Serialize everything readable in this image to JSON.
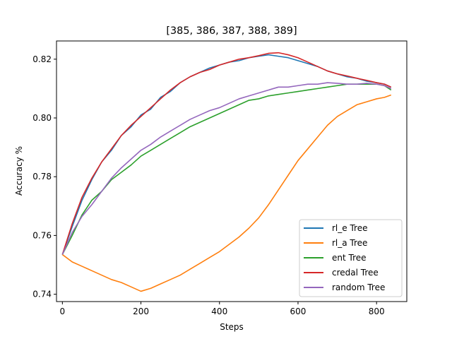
{
  "chart_data": {
    "type": "line",
    "title": "[385, 386, 387, 388, 389]",
    "xlabel": "Steps",
    "ylabel": "Accuracy %",
    "xlim": [
      -15,
      877
    ],
    "ylim": [
      0.7375,
      0.8262
    ],
    "xticks": [
      0,
      200,
      400,
      600,
      800
    ],
    "yticks": [
      0.74,
      0.76,
      0.78,
      0.8,
      0.82
    ],
    "ytick_labels": [
      "0.74",
      "0.76",
      "0.78",
      "0.80",
      "0.82"
    ],
    "grid": false,
    "legend_position": "lower-right",
    "series": [
      {
        "name": "rl_e Tree",
        "color": "#1f77b4",
        "x": [
          0,
          25,
          50,
          75,
          100,
          125,
          150,
          175,
          200,
          225,
          250,
          275,
          300,
          325,
          350,
          375,
          400,
          425,
          450,
          475,
          500,
          525,
          550,
          575,
          600,
          625,
          650,
          675,
          700,
          725,
          750,
          775,
          800,
          820,
          837
        ],
        "y": [
          0.7535,
          0.763,
          0.772,
          0.779,
          0.785,
          0.789,
          0.794,
          0.797,
          0.801,
          0.803,
          0.807,
          0.809,
          0.812,
          0.814,
          0.8155,
          0.817,
          0.818,
          0.819,
          0.8195,
          0.8205,
          0.821,
          0.8215,
          0.821,
          0.8205,
          0.8195,
          0.8185,
          0.8175,
          0.816,
          0.815,
          0.814,
          0.8135,
          0.8125,
          0.812,
          0.8115,
          0.8105
        ]
      },
      {
        "name": "rl_a Tree",
        "color": "#ff7f0e",
        "x": [
          0,
          25,
          50,
          75,
          100,
          125,
          150,
          175,
          200,
          225,
          250,
          275,
          300,
          325,
          350,
          375,
          400,
          425,
          450,
          475,
          500,
          525,
          550,
          575,
          600,
          625,
          650,
          675,
          700,
          725,
          750,
          775,
          800,
          820,
          837
        ],
        "y": [
          0.7535,
          0.751,
          0.7495,
          0.748,
          0.7465,
          0.745,
          0.744,
          0.7425,
          0.741,
          0.742,
          0.7435,
          0.745,
          0.7465,
          0.7485,
          0.7505,
          0.7525,
          0.7545,
          0.757,
          0.7595,
          0.7625,
          0.766,
          0.7705,
          0.7755,
          0.7805,
          0.7855,
          0.7895,
          0.7935,
          0.7975,
          0.8005,
          0.8025,
          0.8045,
          0.8055,
          0.8065,
          0.807,
          0.8078
        ]
      },
      {
        "name": "ent Tree",
        "color": "#2ca02c",
        "x": [
          0,
          25,
          50,
          75,
          100,
          125,
          150,
          175,
          200,
          225,
          250,
          275,
          300,
          325,
          350,
          375,
          400,
          425,
          450,
          475,
          500,
          525,
          550,
          575,
          600,
          625,
          650,
          675,
          700,
          725,
          750,
          775,
          800,
          820,
          837
        ],
        "y": [
          0.7535,
          0.76,
          0.767,
          0.772,
          0.775,
          0.779,
          0.7815,
          0.784,
          0.787,
          0.789,
          0.791,
          0.793,
          0.795,
          0.797,
          0.7985,
          0.8,
          0.8015,
          0.803,
          0.8045,
          0.806,
          0.8065,
          0.8075,
          0.808,
          0.8085,
          0.809,
          0.8095,
          0.81,
          0.8105,
          0.811,
          0.8115,
          0.8115,
          0.8115,
          0.8115,
          0.811,
          0.8095
        ]
      },
      {
        "name": "credal Tree",
        "color": "#d62728",
        "x": [
          0,
          25,
          50,
          75,
          100,
          125,
          150,
          175,
          200,
          225,
          250,
          275,
          300,
          325,
          350,
          375,
          400,
          425,
          450,
          475,
          500,
          525,
          550,
          575,
          600,
          625,
          650,
          675,
          700,
          725,
          750,
          775,
          800,
          820,
          837
        ],
        "y": [
          0.7535,
          0.764,
          0.773,
          0.7795,
          0.785,
          0.7895,
          0.794,
          0.7975,
          0.8005,
          0.8035,
          0.8065,
          0.8095,
          0.812,
          0.814,
          0.8155,
          0.8165,
          0.818,
          0.819,
          0.82,
          0.8205,
          0.8212,
          0.822,
          0.8222,
          0.8215,
          0.8205,
          0.819,
          0.8175,
          0.816,
          0.815,
          0.8143,
          0.8135,
          0.8128,
          0.812,
          0.8115,
          0.8105
        ]
      },
      {
        "name": "random Tree",
        "color": "#9467bd",
        "x": [
          0,
          25,
          50,
          75,
          100,
          125,
          150,
          175,
          200,
          225,
          250,
          275,
          300,
          325,
          350,
          375,
          400,
          425,
          450,
          475,
          500,
          525,
          550,
          575,
          600,
          625,
          650,
          675,
          700,
          725,
          750,
          775,
          800,
          820,
          837
        ],
        "y": [
          0.7535,
          0.761,
          0.7665,
          0.7705,
          0.775,
          0.7795,
          0.783,
          0.786,
          0.789,
          0.791,
          0.7935,
          0.7955,
          0.7975,
          0.7995,
          0.801,
          0.8025,
          0.8035,
          0.805,
          0.8065,
          0.8075,
          0.8085,
          0.8095,
          0.8105,
          0.8105,
          0.811,
          0.8115,
          0.8115,
          0.812,
          0.8118,
          0.8115,
          0.8115,
          0.8118,
          0.8115,
          0.811,
          0.81
        ]
      }
    ]
  }
}
